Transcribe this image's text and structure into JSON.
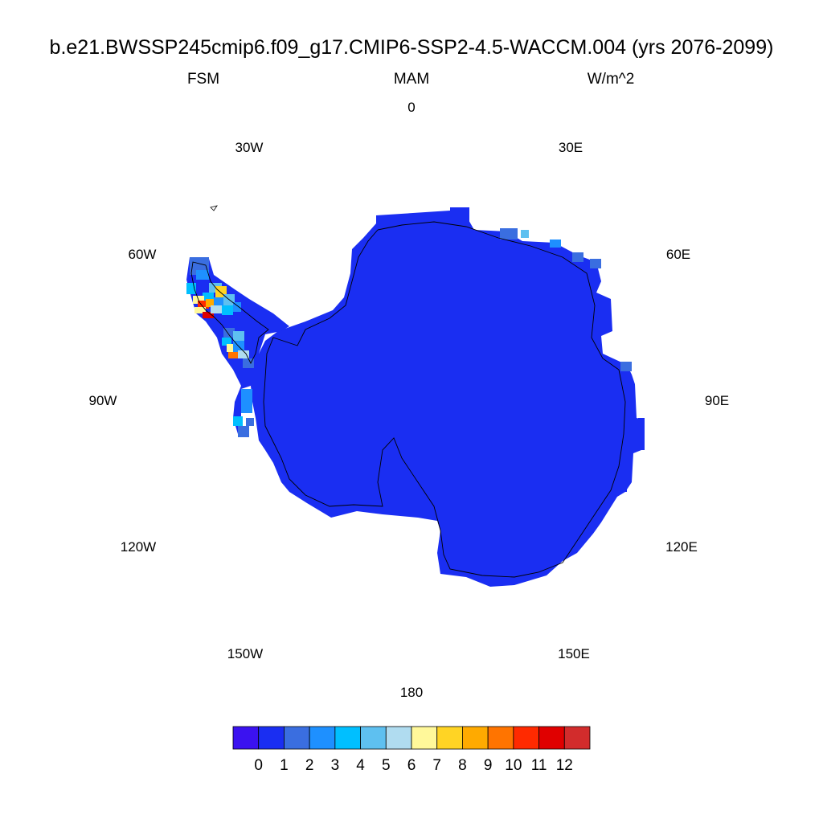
{
  "title": "b.e21.BWSSP245cmip6.f09_g17.CMIP6-SSP2-4.5-WACCM.004 (yrs 2076-2099)",
  "left_label": "FSM",
  "center_label": "MAM",
  "right_label": "W/m^2",
  "longitude_labels": {
    "lon_0": "0",
    "lon_30e": "30E",
    "lon_60e": "60E",
    "lon_90e": "90E",
    "lon_120e": "120E",
    "lon_150e": "150E",
    "lon_180": "180",
    "lon_150w": "150W",
    "lon_120w": "120W",
    "lon_90w": "90W",
    "lon_60w": "60W",
    "lon_30w": "30W"
  },
  "colorbar": {
    "labels": [
      "0",
      "1",
      "2",
      "3",
      "4",
      "5",
      "6",
      "7",
      "8",
      "9",
      "10",
      "11",
      "12"
    ],
    "colors": [
      "#3b12f0",
      "#1a2ef2",
      "#3a6ee0",
      "#1e90ff",
      "#00bfff",
      "#5ec0f0",
      "#b0dcf0",
      "#fff89a",
      "#ffd424",
      "#ffaa00",
      "#ff7400",
      "#ff2a00",
      "#e00000",
      "#d22c2c"
    ]
  },
  "map_data": {
    "projection": "south polar stereographic",
    "dominant_field_color": "#1a2ef2",
    "dominant_value_range": [
      0,
      1
    ],
    "peninsula_value_range": [
      1,
      12
    ]
  }
}
